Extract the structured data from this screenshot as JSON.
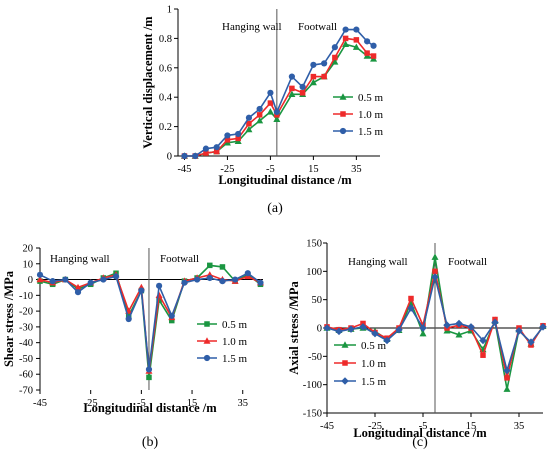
{
  "chart_data": [
    {
      "id": "a",
      "type": "line",
      "panel_label": "(a)",
      "xlabel": "Longitudinal distance /m",
      "ylabel": "Vertical displacement /m",
      "xlim": [
        -48,
        46
      ],
      "ylim": [
        0,
        1
      ],
      "xticks": [
        -45,
        -25,
        -5,
        15,
        35
      ],
      "yticks": [
        0,
        0.2,
        0.4,
        0.6,
        0.8,
        1
      ],
      "yticklabels": [
        "0",
        "0.2",
        "0.4",
        "0.6",
        "0.8",
        "1"
      ],
      "divider_x": -2,
      "annotations": {
        "left": "Hanging wall",
        "right": "Footwall"
      },
      "legend_position": "lower-right",
      "x": [
        -45,
        -40,
        -35,
        -30,
        -25,
        -20,
        -15,
        -10,
        -5,
        -2,
        5,
        10,
        15,
        20,
        25,
        30,
        35,
        40,
        43
      ],
      "series": [
        {
          "name": "0.5 m",
          "color": "#1a9641",
          "marker": "triangle",
          "values": [
            0,
            0,
            0.02,
            0.03,
            0.09,
            0.1,
            0.18,
            0.24,
            0.3,
            0.25,
            0.42,
            0.42,
            0.5,
            0.54,
            0.64,
            0.76,
            0.74,
            0.68,
            0.66
          ]
        },
        {
          "name": "1.0 m",
          "color": "#ee2a2a",
          "marker": "square",
          "values": [
            0,
            0,
            0.02,
            0.03,
            0.11,
            0.12,
            0.22,
            0.28,
            0.36,
            0.28,
            0.46,
            0.43,
            0.54,
            0.54,
            0.67,
            0.8,
            0.79,
            0.7,
            0.68
          ]
        },
        {
          "name": "1.5 m",
          "color": "#2f5ea8",
          "marker": "circle",
          "values": [
            0,
            0,
            0.05,
            0.06,
            0.14,
            0.15,
            0.26,
            0.32,
            0.43,
            0.3,
            0.54,
            0.47,
            0.62,
            0.63,
            0.74,
            0.86,
            0.86,
            0.78,
            0.75
          ]
        }
      ]
    },
    {
      "id": "b",
      "type": "line",
      "panel_label": "(b)",
      "xlabel": "Longitudinal distance /m",
      "ylabel": "Shear stress /MPa",
      "xlim": [
        -45,
        43
      ],
      "ylim": [
        -70,
        20
      ],
      "xticks": [
        -45,
        -25,
        -5,
        15,
        35
      ],
      "yticks": [
        20,
        10,
        0,
        -10,
        -20,
        -30,
        -40,
        -50,
        -60,
        -70
      ],
      "divider_x": -2,
      "annotations": {
        "left": "Hanging wall",
        "right": "Footwall"
      },
      "legend_position": "lower-right",
      "x": [
        -45,
        -40,
        -35,
        -30,
        -25,
        -20,
        -15,
        -10,
        -5,
        -2,
        2,
        7,
        12,
        17,
        22,
        27,
        32,
        37,
        42
      ],
      "series": [
        {
          "name": "0.5 m",
          "color": "#1a9641",
          "marker": "square",
          "values": [
            -1,
            -3,
            0,
            -6,
            -3,
            1,
            4,
            -23,
            -7,
            -62,
            -13,
            -26,
            -1,
            1,
            9,
            8,
            -1,
            3,
            -3
          ]
        },
        {
          "name": "1.0 m",
          "color": "#ee2a2a",
          "marker": "triangle",
          "values": [
            0,
            -2,
            0,
            -5,
            -2,
            1,
            3,
            -20,
            -5,
            -58,
            -10,
            -24,
            -1,
            1,
            3,
            0,
            -1,
            2,
            -2
          ]
        },
        {
          "name": "1.5 m",
          "color": "#2f5ea8",
          "marker": "circle",
          "values": [
            3,
            -1,
            0,
            -8,
            -2,
            0,
            2,
            -25,
            -7,
            -57,
            -4,
            -23,
            -2,
            0,
            1,
            -1,
            0,
            4,
            -2
          ]
        }
      ]
    },
    {
      "id": "c",
      "type": "line",
      "panel_label": "(c)",
      "xlabel": "Longitudinal distance /m",
      "ylabel": "Axial stress /MPa",
      "xlim": [
        -45,
        45
      ],
      "ylim": [
        -150,
        150
      ],
      "xticks": [
        -45,
        -25,
        -5,
        15,
        35
      ],
      "yticks": [
        150,
        100,
        50,
        0,
        -50,
        -100,
        -150
      ],
      "divider_x": 0,
      "annotations": {
        "left": "Hanging wall",
        "right": "Footwall"
      },
      "legend_position": "lower-left",
      "x": [
        -45,
        -40,
        -35,
        -30,
        -25,
        -20,
        -15,
        -10,
        -5,
        0,
        5,
        10,
        15,
        20,
        25,
        30,
        35,
        40,
        45
      ],
      "series": [
        {
          "name": "0.5 m",
          "color": "#1a9641",
          "marker": "triangle",
          "values": [
            0,
            -4,
            -2,
            0,
            -6,
            -20,
            -4,
            45,
            -10,
            125,
            -5,
            -12,
            -5,
            -38,
            12,
            -108,
            -3,
            -28,
            3
          ]
        },
        {
          "name": "1.0 m",
          "color": "#ee2a2a",
          "marker": "square",
          "values": [
            2,
            -3,
            0,
            8,
            -8,
            -18,
            0,
            52,
            5,
            100,
            0,
            5,
            0,
            -48,
            15,
            -88,
            0,
            -30,
            4
          ]
        },
        {
          "name": "1.5 m",
          "color": "#2f5ea8",
          "marker": "diamond",
          "values": [
            0,
            -6,
            -2,
            2,
            -10,
            -22,
            -3,
            35,
            0,
            90,
            5,
            8,
            2,
            -22,
            10,
            -75,
            -5,
            -25,
            2
          ]
        }
      ]
    }
  ]
}
